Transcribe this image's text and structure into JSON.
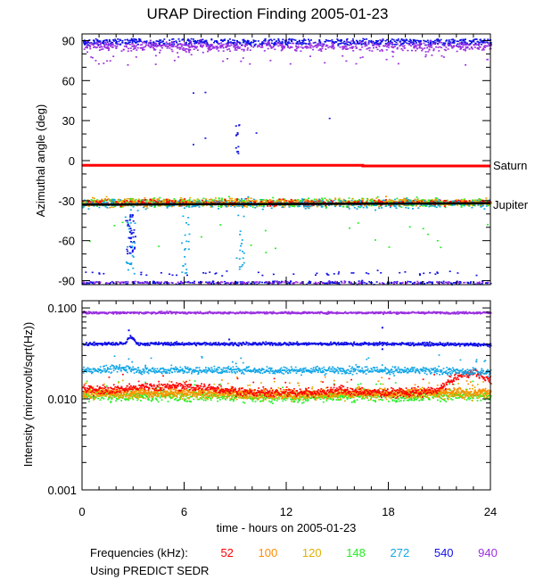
{
  "title": "URAP Direction Finding  2005-01-23",
  "frequencies_label": "Frequencies (kHz):",
  "frequencies": [
    {
      "value": "52",
      "color": "#ff0000"
    },
    {
      "value": "100",
      "color": "#ff8c00"
    },
    {
      "value": "120",
      "color": "#e0b000"
    },
    {
      "value": "148",
      "color": "#22ee22"
    },
    {
      "value": "272",
      "color": "#12a6e6"
    },
    {
      "value": "540",
      "color": "#1010e6"
    },
    {
      "value": "940",
      "color": "#9a30e0"
    }
  ],
  "source_note": "Using PREDICT SEDR",
  "chart_data": [
    {
      "type": "scatter",
      "title": "URAP Direction Finding  2005-01-23",
      "xlabel": "",
      "ylabel": "Azimuthal angle (deg)",
      "xlim": [
        0,
        24
      ],
      "ylim": [
        -93,
        95
      ],
      "yticks": [
        90,
        60,
        30,
        0,
        -30,
        -60,
        -90
      ],
      "reference_lines": [
        {
          "name": "Saturn",
          "color": "#ff0000",
          "points": [
            [
              0,
              -3.5
            ],
            [
              16.5,
              -3.5
            ],
            [
              16.5,
              -4.0
            ],
            [
              24,
              -4.0
            ]
          ]
        },
        {
          "name": "Jupiter",
          "color": "#000000",
          "points": [
            [
              0,
              -33
            ],
            [
              12,
              -32.5
            ],
            [
              24,
              -32
            ]
          ]
        }
      ],
      "series": [
        {
          "freq_khz": 940,
          "color": "#9a30e0",
          "center": 86,
          "spread": 6,
          "note": "band near +90"
        },
        {
          "freq_khz": 540,
          "color": "#1010e6",
          "center": 87,
          "spread": 4,
          "note": "band near +90 and -90"
        },
        {
          "freq_khz": 148,
          "color": "#22ee22",
          "center": -31,
          "spread": 4
        },
        {
          "freq_khz": 120,
          "color": "#e0b000",
          "center": -31,
          "spread": 4
        },
        {
          "freq_khz": 100,
          "color": "#ff8c00",
          "center": -31,
          "spread": 4
        },
        {
          "freq_khz": 52,
          "color": "#ff0000",
          "center": -31,
          "spread": 3
        },
        {
          "freq_khz": 272,
          "color": "#12a6e6",
          "center": -32,
          "spread": 5
        }
      ]
    },
    {
      "type": "line",
      "xlabel": "time - hours on 2005-01-23",
      "ylabel": "Intensity (microvolt/sqrt(Hz))",
      "xlim": [
        0,
        24
      ],
      "ylim": [
        0.001,
        0.12
      ],
      "yscale": "log",
      "yticks": [
        "0.100",
        "0.010",
        "0.001"
      ],
      "xticks": [
        "0",
        "6",
        "12",
        "18",
        "24"
      ],
      "series": [
        {
          "freq_khz": 940,
          "color": "#9a30e0",
          "x": [
            0,
            6,
            12,
            18,
            24
          ],
          "y": [
            0.09,
            0.09,
            0.09,
            0.09,
            0.09
          ]
        },
        {
          "freq_khz": 540,
          "color": "#1010e6",
          "x": [
            0,
            2.5,
            2.8,
            3.2,
            6,
            12,
            18,
            24
          ],
          "y": [
            0.041,
            0.041,
            0.05,
            0.041,
            0.041,
            0.041,
            0.041,
            0.04
          ]
        },
        {
          "freq_khz": 272,
          "color": "#12a6e6",
          "x": [
            0,
            2.7,
            3.3,
            6,
            12,
            18,
            24
          ],
          "y": [
            0.021,
            0.022,
            0.021,
            0.021,
            0.021,
            0.021,
            0.02
          ]
        },
        {
          "freq_khz": 52,
          "color": "#ff0000",
          "x": [
            0,
            2,
            4,
            6,
            8,
            10,
            12,
            14,
            15,
            16,
            18,
            20,
            21,
            22,
            23,
            23.5,
            24
          ],
          "y": [
            0.013,
            0.013,
            0.014,
            0.014,
            0.013,
            0.012,
            0.012,
            0.012,
            0.013,
            0.012,
            0.012,
            0.012,
            0.013,
            0.018,
            0.02,
            0.018,
            0.016
          ]
        },
        {
          "freq_khz": 100,
          "color": "#ff8c00",
          "x": [
            0,
            4,
            8,
            12,
            16,
            20,
            24
          ],
          "y": [
            0.012,
            0.012,
            0.012,
            0.0115,
            0.012,
            0.012,
            0.012
          ]
        },
        {
          "freq_khz": 120,
          "color": "#e0b000",
          "x": [
            0,
            4,
            8,
            12,
            16,
            20,
            24
          ],
          "y": [
            0.0115,
            0.0115,
            0.0115,
            0.011,
            0.0115,
            0.0115,
            0.0115
          ]
        },
        {
          "freq_khz": 148,
          "color": "#22ee22",
          "x": [
            0,
            4,
            8,
            12,
            16,
            20,
            24
          ],
          "y": [
            0.011,
            0.011,
            0.011,
            0.0105,
            0.011,
            0.011,
            0.011
          ]
        }
      ]
    }
  ]
}
